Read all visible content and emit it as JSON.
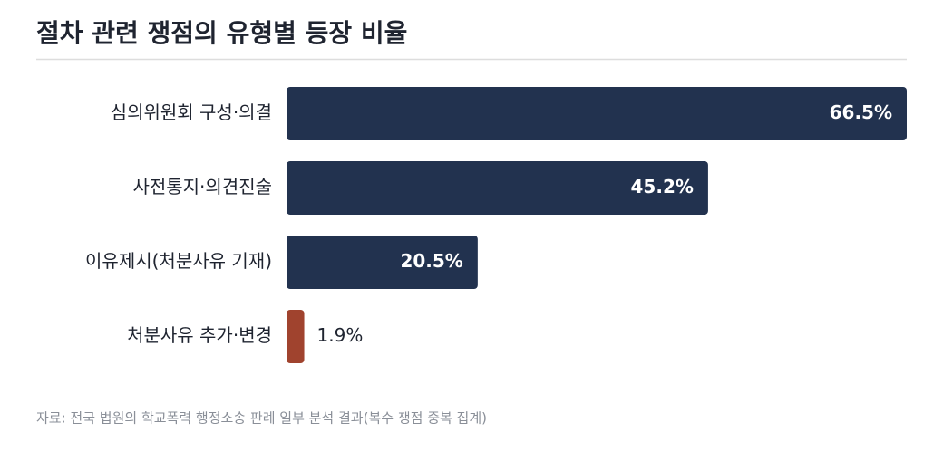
{
  "chart_data": {
    "type": "bar",
    "orientation": "horizontal",
    "title": "절차 관련 쟁점의 유형별 등장 비율",
    "categories": [
      "심의위원회 구성·의결",
      "사전통지·의견진술",
      "이유제시(처분사유 기재)",
      "처분사유 추가·변경"
    ],
    "values": [
      66.5,
      45.2,
      20.5,
      1.9
    ],
    "value_labels": [
      "66.5%",
      "45.2%",
      "20.5%",
      "1.9%"
    ],
    "colors": [
      "#22324f",
      "#22324f",
      "#22324f",
      "#a0432e"
    ],
    "source": "자료: 전국 법원의 학교폭력 행정소송 판례 일부 분석 결과(복수 쟁점 중복 집계)"
  }
}
